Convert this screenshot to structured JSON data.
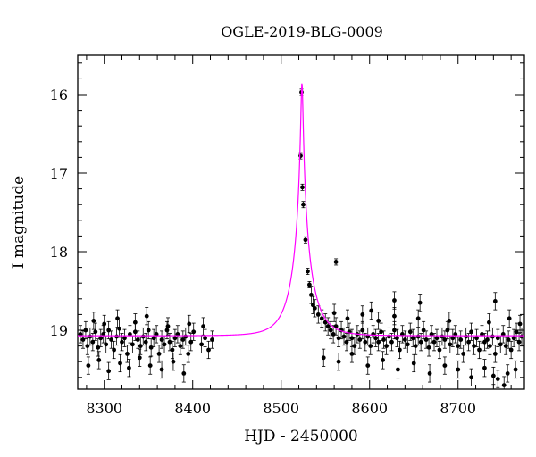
{
  "chart_data": {
    "type": "scatter",
    "title": "OGLE-2019-BLG-0009",
    "xlabel": "HJD - 2450000",
    "ylabel": "I magnitude",
    "xlim": [
      8270,
      8775
    ],
    "ylim": [
      19.75,
      15.5
    ],
    "y_inverted": true,
    "x_ticks": [
      8300,
      8400,
      8500,
      8600,
      8700
    ],
    "y_ticks": [
      16,
      17,
      18,
      19
    ],
    "grid": false,
    "colors": {
      "points": "#000000",
      "model": "#ff00ff"
    },
    "model": {
      "name": "",
      "type": "microlensing-fit",
      "t0": 8523.5,
      "baseline_mag": 19.07,
      "peak_mag": 15.85,
      "tE": 22,
      "blend_fraction": 0.98
    },
    "series": [
      {
        "name": "",
        "points": [
          [
            8273,
            19.05
          ],
          [
            8276,
            19.12
          ],
          [
            8279,
            19.0
          ],
          [
            8281,
            19.2
          ],
          [
            8284,
            19.08
          ],
          [
            8287,
            19.15
          ],
          [
            8290,
            19.02
          ],
          [
            8293,
            19.22
          ],
          [
            8296,
            19.1
          ],
          [
            8299,
            19.05
          ],
          [
            8302,
            19.18
          ],
          [
            8305,
            19.0
          ],
          [
            8308,
            19.12
          ],
          [
            8311,
            19.25
          ],
          [
            8314,
            19.08
          ],
          [
            8317,
            18.98
          ],
          [
            8320,
            19.15
          ],
          [
            8323,
            19.1
          ],
          [
            8326,
            19.3
          ],
          [
            8329,
            19.05
          ],
          [
            8332,
            19.18
          ],
          [
            8335,
            19.02
          ],
          [
            8338,
            19.12
          ],
          [
            8341,
            19.2
          ],
          [
            8344,
            19.08
          ],
          [
            8347,
            19.15
          ],
          [
            8350,
            19.0
          ],
          [
            8353,
            19.22
          ],
          [
            8356,
            19.1
          ],
          [
            8359,
            19.05
          ],
          [
            8362,
            19.3
          ],
          [
            8365,
            19.12
          ],
          [
            8368,
            19.18
          ],
          [
            8371,
            19.0
          ],
          [
            8374,
            19.15
          ],
          [
            8377,
            19.25
          ],
          [
            8380,
            19.1
          ],
          [
            8383,
            19.05
          ],
          [
            8386,
            19.2
          ],
          [
            8389,
            19.12
          ],
          [
            8392,
            19.08
          ],
          [
            8395,
            19.3
          ],
          [
            8398,
            19.15
          ],
          [
            8401,
            19.02
          ],
          [
            8410,
            19.18
          ],
          [
            8414,
            19.1
          ],
          [
            8418,
            19.25
          ],
          [
            8422,
            19.12
          ],
          [
            8282,
            19.45
          ],
          [
            8294,
            19.38
          ],
          [
            8305,
            19.52
          ],
          [
            8318,
            19.42
          ],
          [
            8328,
            19.48
          ],
          [
            8340,
            19.35
          ],
          [
            8352,
            19.45
          ],
          [
            8365,
            19.5
          ],
          [
            8378,
            19.4
          ],
          [
            8390,
            19.55
          ],
          [
            8288,
            18.88
          ],
          [
            8300,
            18.92
          ],
          [
            8315,
            18.85
          ],
          [
            8335,
            18.9
          ],
          [
            8348,
            18.82
          ],
          [
            8372,
            18.95
          ],
          [
            8396,
            18.92
          ],
          [
            8412,
            18.95
          ],
          [
            8538,
            18.72
          ],
          [
            8542,
            18.8
          ],
          [
            8546,
            18.85
          ],
          [
            8550,
            18.9
          ],
          [
            8553,
            18.95
          ],
          [
            8556,
            19.0
          ],
          [
            8559,
            19.05
          ],
          [
            8562,
            18.95
          ],
          [
            8565,
            19.1
          ],
          [
            8568,
            19.0
          ],
          [
            8571,
            19.08
          ],
          [
            8574,
            19.15
          ],
          [
            8577,
            19.02
          ],
          [
            8580,
            19.1
          ],
          [
            8583,
            19.2
          ],
          [
            8586,
            19.05
          ],
          [
            8589,
            19.12
          ],
          [
            8592,
            19.0
          ],
          [
            8595,
            19.15
          ],
          [
            8598,
            19.08
          ],
          [
            8601,
            19.2
          ],
          [
            8604,
            19.05
          ],
          [
            8607,
            19.1
          ],
          [
            8610,
            19.15
          ],
          [
            8613,
            19.02
          ],
          [
            8616,
            19.12
          ],
          [
            8619,
            19.2
          ],
          [
            8622,
            19.08
          ],
          [
            8625,
            19.15
          ],
          [
            8628,
            19.0
          ],
          [
            8631,
            19.1
          ],
          [
            8634,
            19.25
          ],
          [
            8637,
            19.05
          ],
          [
            8640,
            19.12
          ],
          [
            8643,
            19.18
          ],
          [
            8646,
            19.02
          ],
          [
            8649,
            19.1
          ],
          [
            8652,
            19.2
          ],
          [
            8655,
            19.08
          ],
          [
            8658,
            19.15
          ],
          [
            8661,
            19.0
          ],
          [
            8664,
            19.12
          ],
          [
            8667,
            19.22
          ],
          [
            8670,
            19.05
          ],
          [
            8673,
            19.15
          ],
          [
            8676,
            19.1
          ],
          [
            8679,
            19.25
          ],
          [
            8682,
            19.08
          ],
          [
            8685,
            19.12
          ],
          [
            8688,
            19.0
          ],
          [
            8691,
            19.18
          ],
          [
            8694,
            19.1
          ],
          [
            8697,
            19.05
          ],
          [
            8700,
            19.2
          ],
          [
            8703,
            19.12
          ],
          [
            8706,
            19.3
          ],
          [
            8709,
            19.08
          ],
          [
            8712,
            19.15
          ],
          [
            8715,
            19.02
          ],
          [
            8718,
            19.2
          ],
          [
            8721,
            19.1
          ],
          [
            8724,
            19.25
          ],
          [
            8727,
            19.05
          ],
          [
            8730,
            19.15
          ],
          [
            8733,
            19.12
          ],
          [
            8736,
            19.2
          ],
          [
            8739,
            19.08
          ],
          [
            8742,
            19.3
          ],
          [
            8745,
            19.1
          ],
          [
            8748,
            19.18
          ],
          [
            8751,
            19.05
          ],
          [
            8754,
            19.2
          ],
          [
            8757,
            19.12
          ],
          [
            8760,
            19.25
          ],
          [
            8763,
            19.1
          ],
          [
            8766,
            19.02
          ],
          [
            8769,
            19.15
          ],
          [
            8772,
            19.08
          ],
          [
            8560,
            18.78
          ],
          [
            8575,
            18.85
          ],
          [
            8592,
            18.8
          ],
          [
            8610,
            18.88
          ],
          [
            8628,
            18.82
          ],
          [
            8655,
            18.85
          ],
          [
            8690,
            18.88
          ],
          [
            8735,
            18.9
          ],
          [
            8758,
            18.85
          ],
          [
            8770,
            18.92
          ],
          [
            8548,
            19.35
          ],
          [
            8565,
            19.4
          ],
          [
            8580,
            19.3
          ],
          [
            8598,
            19.45
          ],
          [
            8615,
            19.38
          ],
          [
            8632,
            19.5
          ],
          [
            8650,
            19.42
          ],
          [
            8668,
            19.55
          ],
          [
            8685,
            19.45
          ],
          [
            8700,
            19.5
          ],
          [
            8715,
            19.6
          ],
          [
            8730,
            19.48
          ],
          [
            8745,
            19.62
          ],
          [
            8756,
            19.55
          ],
          [
            8765,
            19.5
          ],
          [
            8752,
            19.7
          ],
          [
            8740,
            19.58
          ],
          [
            8522.0,
            16.78
          ],
          [
            8523.0,
            15.97
          ],
          [
            8524.0,
            17.18
          ],
          [
            8525.0,
            17.4
          ],
          [
            8527.5,
            17.85
          ],
          [
            8530.0,
            18.25
          ],
          [
            8532.0,
            18.42
          ],
          [
            8534.0,
            18.55
          ],
          [
            8536.0,
            18.68
          ],
          [
            8562.0,
            18.13
          ],
          [
            8602,
            18.75
          ],
          [
            8628,
            18.62
          ],
          [
            8657,
            18.65
          ],
          [
            8742,
            18.63
          ]
        ]
      }
    ]
  }
}
